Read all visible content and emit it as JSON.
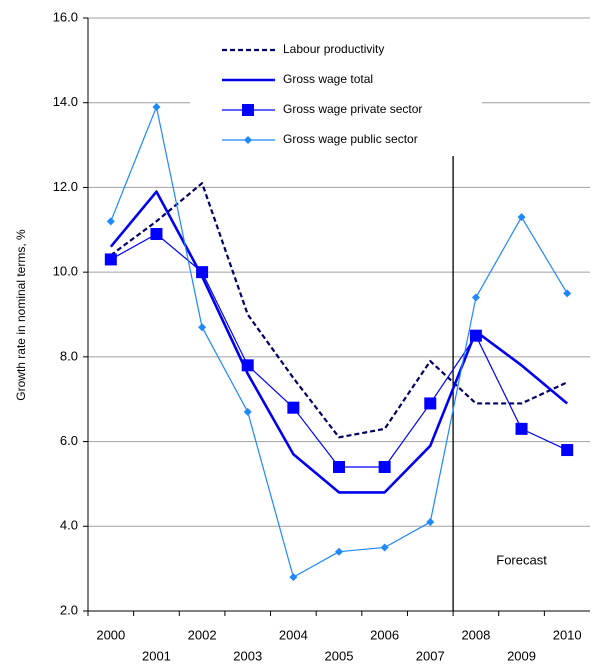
{
  "chart_data": {
    "type": "line",
    "y_label": "Growth rate in nominal terms, %",
    "categories": [
      "2000",
      "2001",
      "2002",
      "2003",
      "2004",
      "2005",
      "2006",
      "2007",
      "2008",
      "2009",
      "2010"
    ],
    "series": [
      {
        "name": "Labour productivity",
        "color": "#000066",
        "style": "dashed",
        "marker": "none",
        "values": [
          10.4,
          11.2,
          12.1,
          9.0,
          7.5,
          6.1,
          6.3,
          7.9,
          6.9,
          6.9,
          7.4
        ]
      },
      {
        "name": "Gross wage total",
        "color": "#0000ee",
        "style": "thick",
        "marker": "none",
        "values": [
          10.6,
          11.9,
          9.9,
          7.6,
          5.7,
          4.8,
          4.8,
          5.9,
          8.6,
          7.8,
          6.9
        ]
      },
      {
        "name": "Gross wage private sector",
        "color": "#0000ff",
        "style": "solid",
        "marker": "square",
        "values": [
          10.3,
          10.9,
          10.0,
          7.8,
          6.8,
          5.4,
          5.4,
          6.9,
          8.5,
          6.3,
          5.8
        ]
      },
      {
        "name": "Gross wage public sector",
        "color": "#1e88ff",
        "style": "solid",
        "marker": "diamond",
        "values": [
          11.2,
          13.9,
          8.7,
          6.7,
          2.8,
          3.4,
          3.5,
          4.1,
          9.4,
          11.3,
          9.5
        ]
      }
    ],
    "ylim": [
      2,
      16
    ],
    "yticks": [
      {
        "value": 2,
        "label": "2.0"
      },
      {
        "value": 4,
        "label": "4.0"
      },
      {
        "value": 6,
        "label": "6.0"
      },
      {
        "value": 8,
        "label": "8.0"
      },
      {
        "value": 10,
        "label": "10.0"
      },
      {
        "value": 12,
        "label": "12.0"
      },
      {
        "value": 14,
        "label": "14.0"
      },
      {
        "value": 16,
        "label": "16.0"
      }
    ],
    "grid": true,
    "forecast": {
      "text": "Forecast",
      "start_category": "2008"
    }
  }
}
